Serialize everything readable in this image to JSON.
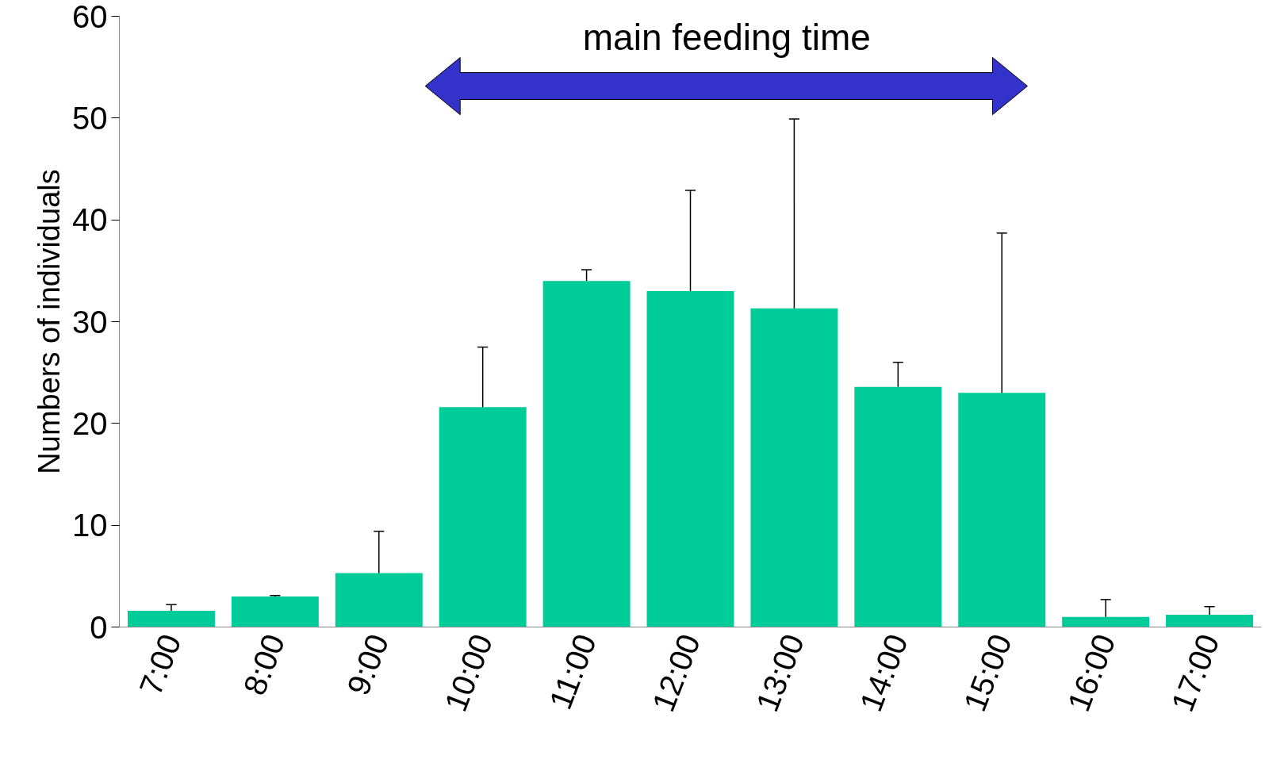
{
  "chart_data": {
    "type": "bar",
    "ylabel": "Numbers of individuals",
    "categories": [
      "7:00",
      "8:00",
      "9:00",
      "10:00",
      "11:00",
      "12:00",
      "13:00",
      "14:00",
      "15:00",
      "16:00",
      "17:00"
    ],
    "values": [
      1.6,
      3.0,
      5.3,
      21.6,
      34.0,
      33.0,
      31.3,
      23.6,
      23.0,
      1.0,
      1.2
    ],
    "errors": [
      [
        1.6,
        2.2
      ],
      [
        3.0,
        3.1
      ],
      [
        5.3,
        9.4
      ],
      [
        21.6,
        27.5
      ],
      [
        34.0,
        35.1
      ],
      [
        33.0,
        42.9
      ],
      [
        31.3,
        49.9
      ],
      [
        23.6,
        26.0
      ],
      [
        23.0,
        38.7
      ],
      [
        1.0,
        2.7
      ],
      [
        1.2,
        2.0
      ]
    ],
    "color": "#00cc99",
    "ylim": [
      0,
      60
    ],
    "yticks": [
      0,
      10,
      20,
      30,
      40,
      50,
      60
    ],
    "grid": false,
    "annotations": [
      "main feeding time"
    ]
  }
}
